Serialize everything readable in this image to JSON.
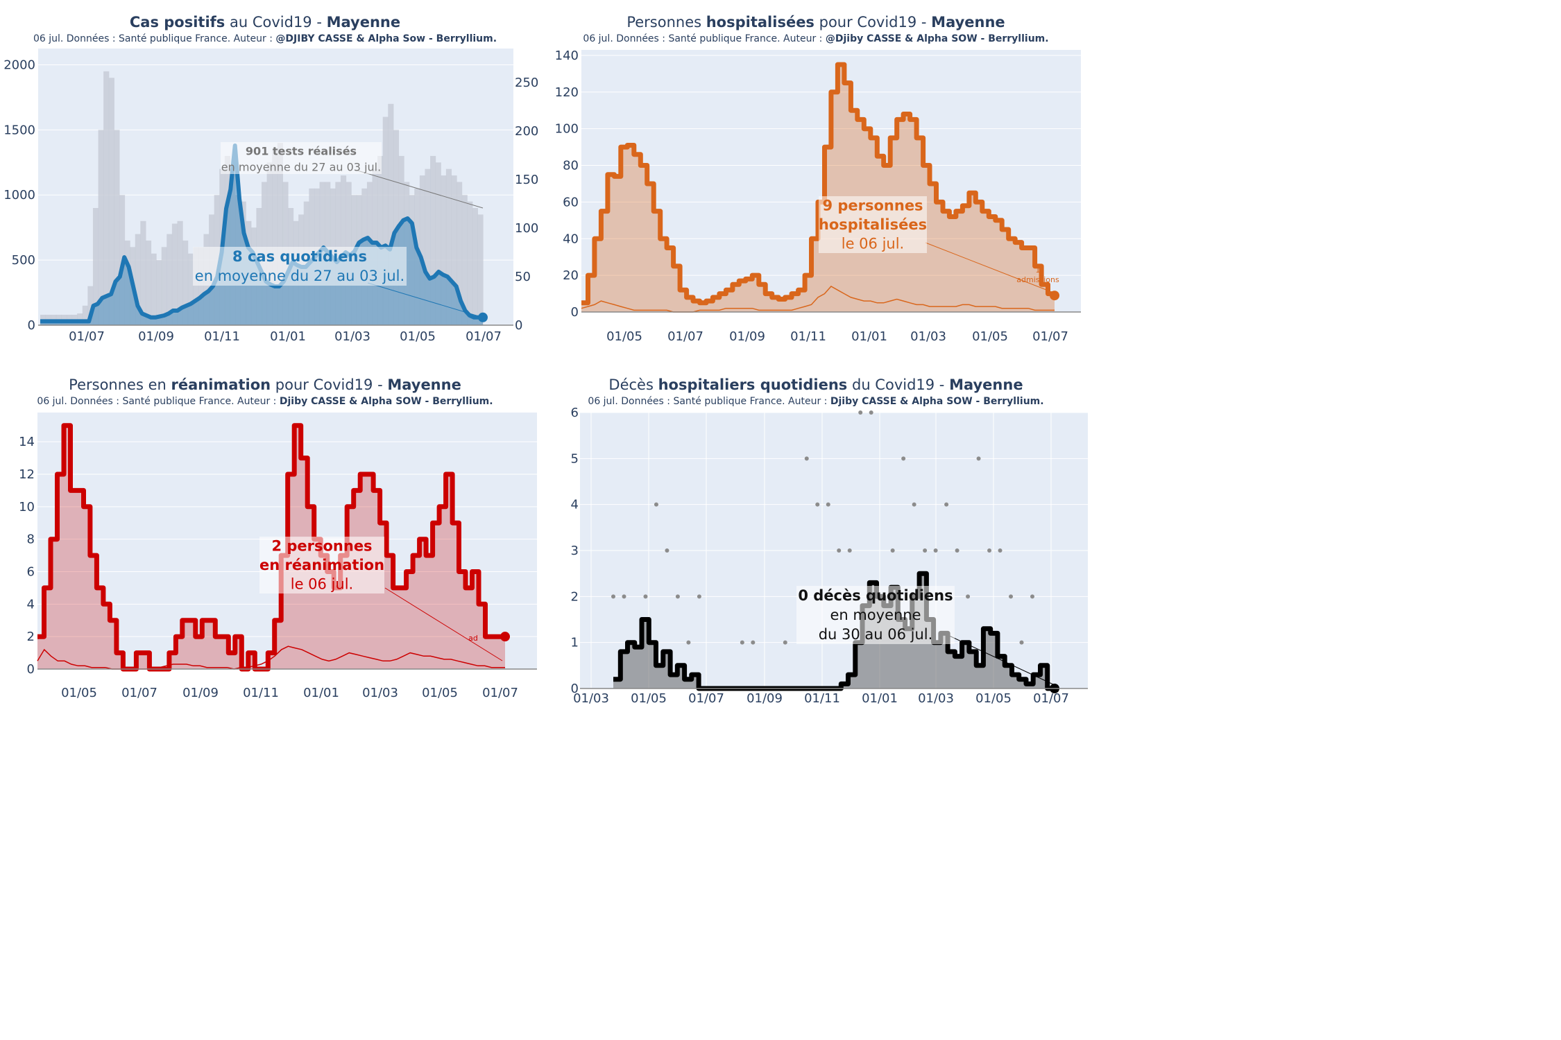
{
  "colors": {
    "plot_bg": "#e5ecf6",
    "grid": "#ffffff",
    "text": "#2a3f5f",
    "blue": "#1f77b4",
    "orange": "#d9661b",
    "red": "#cc0000",
    "black": "#000000",
    "tests_gray": "#c5cbd6",
    "dots_gray": "#8c8c8c"
  },
  "panels": {
    "p1": {
      "title_bold": "Cas positifs",
      "title_rest": " au Covid19 - ",
      "title_region": "Mayenne",
      "subtitle_plain": "06 jul. Données : Santé publique France. Auteur : ",
      "subtitle_bold": "@DJIBY CASSE & Alpha Sow - Berryllium.",
      "annot_tests_bold": "901 tests réalisés",
      "annot_tests_rest": "en moyenne du 27 au 03 jul.",
      "annot_main_bold": "8 cas quotidiens",
      "annot_main_rest": "en moyenne du 27 au 03 jul."
    },
    "p2": {
      "title_pre": "Personnes ",
      "title_bold": "hospitalisées",
      "title_rest": " pour Covid19 - ",
      "title_region": "Mayenne",
      "subtitle_plain": "06 jul. Données : Santé publique France. Auteur : ",
      "subtitle_bold": "@Djiby CASSE & Alpha SOW - Berryllium.",
      "annot_bold_1": "9 personnes",
      "annot_bold_2": "hospitalisées",
      "annot_rest": "le 06 jul.",
      "annot_small_1": "1",
      "annot_small_2": "admissions"
    },
    "p3": {
      "title_pre": "Personnes en ",
      "title_bold": "réanimation",
      "title_rest": " pour Covid19 - ",
      "title_region": "Mayenne",
      "subtitle_plain": "06 jul. Données : Santé publique France. Auteur : ",
      "subtitle_bold": "Djiby CASSE & Alpha SOW - Berryllium.",
      "annot_bold_1": "2 personnes",
      "annot_bold_2": "en réanimation",
      "annot_rest": "le 06 jul.",
      "annot_small": "ad"
    },
    "p4": {
      "title_pre": "Décès ",
      "title_bold": "hospitaliers quotidiens",
      "title_rest": " du Covid19 - ",
      "title_region": "Mayenne",
      "subtitle_plain": "06 jul. Données : Santé publique France. Auteur : ",
      "subtitle_bold": "Djiby CASSE & Alpha SOW - Berryllium.",
      "annot_bold": "0 décès quotidiens",
      "annot_rest_1": "en moyenne",
      "annot_rest_2": "du 30 au 06 jul."
    }
  },
  "chart_data": [
    {
      "type": "line",
      "title": "Cas positifs au Covid19 - Mayenne",
      "x_ticks": [
        "01/07",
        "01/09",
        "01/11",
        "01/01",
        "01/03",
        "01/05",
        "01/07"
      ],
      "ylim": [
        0,
        2000
      ],
      "y_ticks": [
        0,
        500,
        1000,
        1500,
        2000
      ],
      "y2lim": [
        0,
        280
      ],
      "y2_ticks": [
        0,
        50,
        100,
        150,
        200,
        250
      ],
      "series": [
        {
          "name": "cas quotidiens (moyenne 7 j)",
          "axis": "right",
          "y_right": [
            4,
            4,
            4,
            4,
            4,
            4,
            4,
            4,
            4,
            4,
            4,
            4,
            20,
            22,
            28,
            30,
            32,
            45,
            50,
            70,
            60,
            40,
            20,
            12,
            10,
            8,
            8,
            9,
            10,
            12,
            15,
            15,
            18,
            20,
            22,
            25,
            28,
            32,
            35,
            40,
            50,
            75,
            120,
            140,
            185,
            130,
            95,
            80,
            75,
            65,
            55,
            45,
            42,
            40,
            40,
            45,
            55,
            65,
            62,
            60,
            60,
            65,
            70,
            75,
            80,
            75,
            70,
            65,
            70,
            75,
            72,
            76,
            85,
            88,
            90,
            85,
            85,
            80,
            82,
            78,
            95,
            102,
            108,
            110,
            105,
            80,
            70,
            55,
            48,
            50,
            55,
            52,
            50,
            45,
            40,
            25,
            15,
            10,
            8,
            8,
            8
          ]
        },
        {
          "name": "tests réalisés",
          "axis": "left",
          "kind": "bars",
          "y_left": [
            80,
            80,
            80,
            80,
            80,
            80,
            80,
            90,
            150,
            300,
            900,
            1500,
            1950,
            1900,
            1500,
            1000,
            650,
            600,
            700,
            800,
            650,
            550,
            500,
            600,
            700,
            780,
            800,
            650,
            550,
            600,
            600,
            700,
            850,
            1000,
            1200,
            1300,
            1200,
            1000,
            950,
            800,
            750,
            900,
            1100,
            1250,
            1350,
            1400,
            1100,
            900,
            800,
            850,
            950,
            1050,
            1050,
            1100,
            1100,
            1050,
            1100,
            1150,
            1100,
            1000,
            1000,
            1050,
            1100,
            1200,
            1300,
            1600,
            1700,
            1500,
            1300,
            1100,
            1000,
            1050,
            1150,
            1200,
            1300,
            1250,
            1150,
            1200,
            1150,
            1100,
            1000,
            950,
            900,
            850
          ]
        }
      ]
    },
    {
      "type": "area",
      "title": "Personnes hospitalisées pour Covid19 - Mayenne",
      "x_ticks": [
        "01/05",
        "01/07",
        "01/09",
        "01/11",
        "01/01",
        "01/03",
        "01/05",
        "01/07"
      ],
      "ylim": [
        0,
        140
      ],
      "y_ticks": [
        0,
        20,
        40,
        60,
        80,
        100,
        120,
        140
      ],
      "series": [
        {
          "name": "personnes hospitalisées",
          "values": [
            5,
            20,
            40,
            55,
            75,
            74,
            90,
            91,
            86,
            80,
            70,
            55,
            40,
            35,
            25,
            12,
            8,
            6,
            5,
            6,
            8,
            10,
            12,
            15,
            17,
            18,
            20,
            15,
            10,
            8,
            7,
            8,
            10,
            12,
            20,
            40,
            60,
            90,
            120,
            135,
            125,
            110,
            105,
            100,
            95,
            85,
            80,
            95,
            105,
            108,
            105,
            95,
            80,
            70,
            60,
            55,
            52,
            55,
            58,
            65,
            60,
            55,
            52,
            50,
            45,
            40,
            38,
            35,
            35,
            25,
            15,
            10,
            9
          ]
        },
        {
          "name": "admissions",
          "values": [
            2,
            3,
            4,
            6,
            5,
            4,
            3,
            2,
            1,
            1,
            1,
            1,
            1,
            1,
            0,
            0,
            0,
            0,
            1,
            1,
            1,
            1,
            2,
            2,
            2,
            2,
            2,
            1,
            1,
            1,
            1,
            1,
            1,
            2,
            3,
            4,
            8,
            10,
            14,
            12,
            10,
            8,
            7,
            6,
            6,
            5,
            5,
            6,
            7,
            6,
            5,
            4,
            4,
            3,
            3,
            3,
            3,
            3,
            4,
            4,
            3,
            3,
            3,
            3,
            2,
            2,
            2,
            2,
            2,
            1,
            1,
            1,
            1
          ]
        }
      ],
      "annotation_value": 9
    },
    {
      "type": "area",
      "title": "Personnes en réanimation pour Covid19 - Mayenne",
      "x_ticks": [
        "01/05",
        "01/07",
        "01/09",
        "01/11",
        "01/01",
        "01/03",
        "01/05",
        "01/07"
      ],
      "ylim": [
        0,
        15.5
      ],
      "y_ticks": [
        0,
        2,
        4,
        6,
        8,
        10,
        12,
        14
      ],
      "series": [
        {
          "name": "personnes en réanimation",
          "values": [
            2,
            5,
            8,
            12,
            15,
            11,
            11,
            10,
            7,
            5,
            4,
            3,
            1,
            0,
            0,
            1,
            1,
            0,
            0,
            0,
            1,
            2,
            3,
            3,
            2,
            3,
            3,
            2,
            2,
            1,
            2,
            0,
            1,
            0,
            0,
            1,
            3,
            7,
            12,
            15,
            13,
            10,
            8,
            7,
            6,
            5,
            7,
            10,
            11,
            12,
            12,
            11,
            9,
            7,
            5,
            5,
            6,
            7,
            8,
            7,
            9,
            10,
            12,
            9,
            6,
            5,
            6,
            4,
            2,
            2,
            2,
            2
          ]
        },
        {
          "name": "admissions",
          "values": [
            0.5,
            1.2,
            0.8,
            0.5,
            0.5,
            0.3,
            0.2,
            0.2,
            0.1,
            0.1,
            0.1,
            0,
            0,
            0,
            0,
            0,
            0,
            0,
            0.1,
            0.2,
            0.3,
            0.3,
            0.3,
            0.2,
            0.2,
            0.1,
            0.1,
            0.1,
            0.1,
            0,
            0.1,
            0.1,
            0.2,
            0.3,
            0.5,
            0.8,
            1.2,
            1.4,
            1.3,
            1.2,
            1,
            0.8,
            0.6,
            0.5,
            0.6,
            0.8,
            1,
            0.9,
            0.8,
            0.7,
            0.6,
            0.5,
            0.5,
            0.6,
            0.8,
            1,
            0.9,
            0.8,
            0.8,
            0.7,
            0.6,
            0.6,
            0.5,
            0.4,
            0.3,
            0.2,
            0.2,
            0.1,
            0.1,
            0.1
          ]
        }
      ],
      "annotation_value": 2
    },
    {
      "type": "area",
      "title": "Décès hospitaliers quotidiens du Covid19 - Mayenne",
      "x_ticks": [
        "01/03",
        "01/05",
        "01/07",
        "01/09",
        "01/11",
        "01/01",
        "01/03",
        "01/05",
        "01/07"
      ],
      "ylim": [
        0,
        6
      ],
      "y_ticks": [
        0,
        1,
        2,
        3,
        4,
        5,
        6
      ],
      "series": [
        {
          "name": "décès quotidiens (moyenne 7 j)",
          "values": [
            0.2,
            0.8,
            1,
            0.9,
            1.5,
            1,
            0.5,
            0.8,
            0.3,
            0.5,
            0.2,
            0.3,
            0,
            0,
            0,
            0,
            0,
            0,
            0,
            0,
            0,
            0,
            0,
            0,
            0,
            0,
            0,
            0,
            0,
            0,
            0,
            0,
            0.1,
            0.3,
            1,
            1.8,
            2.3,
            2,
            1.8,
            2.2,
            1.5,
            1.3,
            2,
            2.5,
            1.5,
            1,
            1.2,
            0.8,
            0.7,
            1,
            0.8,
            0.5,
            1.3,
            1.2,
            0.7,
            0.5,
            0.3,
            0.2,
            0.1,
            0.3,
            0.5,
            0,
            0
          ]
        },
        {
          "name": "décès quotidiens",
          "kind": "dots",
          "values": [
            2,
            2,
            1,
            2,
            4,
            3,
            2,
            1,
            2,
            0,
            0,
            0,
            1,
            1,
            0,
            0,
            1,
            0,
            5,
            4,
            4,
            3,
            3,
            6,
            6,
            2,
            3,
            5,
            4,
            3,
            3,
            4,
            3,
            2,
            5,
            3,
            3,
            2,
            1,
            2
          ]
        }
      ],
      "annotation_value": 0
    }
  ]
}
